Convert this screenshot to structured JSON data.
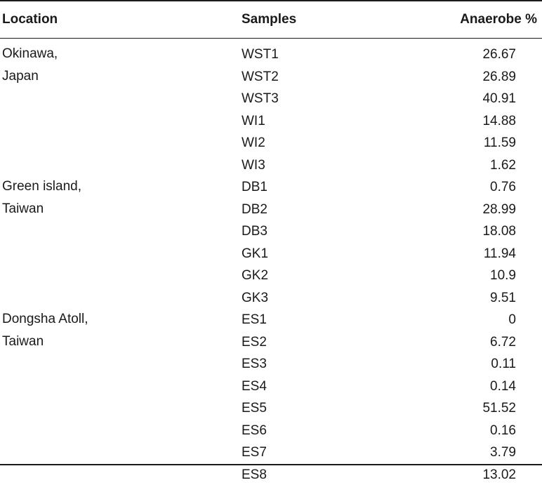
{
  "headers": {
    "location": "Location",
    "samples": "Samples",
    "anaerobe": "Anaerobe %"
  },
  "groups": [
    {
      "location_line1": "Okinawa,",
      "location_line2": "Japan"
    },
    {
      "location_line1": "Green island,",
      "location_line2": "Taiwan"
    },
    {
      "location_line1": "Dongsha Atoll,",
      "location_line2": "Taiwan"
    }
  ],
  "rows": [
    {
      "sample": "WST1",
      "value": "26.67"
    },
    {
      "sample": "WST2",
      "value": "26.89"
    },
    {
      "sample": "WST3",
      "value": "40.91"
    },
    {
      "sample": "WI1",
      "value": "14.88"
    },
    {
      "sample": "WI2",
      "value": "11.59"
    },
    {
      "sample": "WI3",
      "value": "1.62"
    },
    {
      "sample": "DB1",
      "value": "0.76"
    },
    {
      "sample": "DB2",
      "value": "28.99"
    },
    {
      "sample": "DB3",
      "value": "18.08"
    },
    {
      "sample": "GK1",
      "value": "11.94"
    },
    {
      "sample": "GK2",
      "value": "10.9"
    },
    {
      "sample": "GK3",
      "value": "9.51"
    },
    {
      "sample": "ES1",
      "value": "0"
    },
    {
      "sample": "ES2",
      "value": "6.72"
    },
    {
      "sample": "ES3",
      "value": "0.11"
    },
    {
      "sample": "ES4",
      "value": "0.14"
    },
    {
      "sample": "ES5",
      "value": "51.52"
    },
    {
      "sample": "ES6",
      "value": "0.16"
    },
    {
      "sample": "ES7",
      "value": "3.79"
    },
    {
      "sample": "ES8",
      "value": "13.02"
    }
  ]
}
